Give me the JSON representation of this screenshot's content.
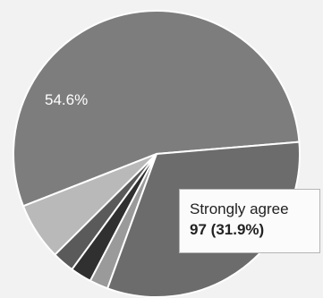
{
  "chart_data": {
    "type": "pie",
    "slices": [
      {
        "label": "",
        "percent": 54.6,
        "value_label": "54.6%",
        "color": "#7d7d7d"
      },
      {
        "label": "",
        "percent": 6.5,
        "value_label": "",
        "color": "#b9b9b9"
      },
      {
        "label": "",
        "percent": 2.5,
        "value_label": "",
        "color": "#5a5a5a"
      },
      {
        "label": "",
        "percent": 2.4,
        "value_label": "",
        "color": "#303030"
      },
      {
        "label": "",
        "percent": 2.1,
        "value_label": "",
        "color": "#9a9a9a"
      },
      {
        "label": "Strongly agree",
        "percent": 31.9,
        "count": 97,
        "value_label": "",
        "color": "#6c6c6c"
      }
    ],
    "tooltip": {
      "label": "Strongly agree",
      "count": "97",
      "percent": "(31.9%)"
    }
  }
}
